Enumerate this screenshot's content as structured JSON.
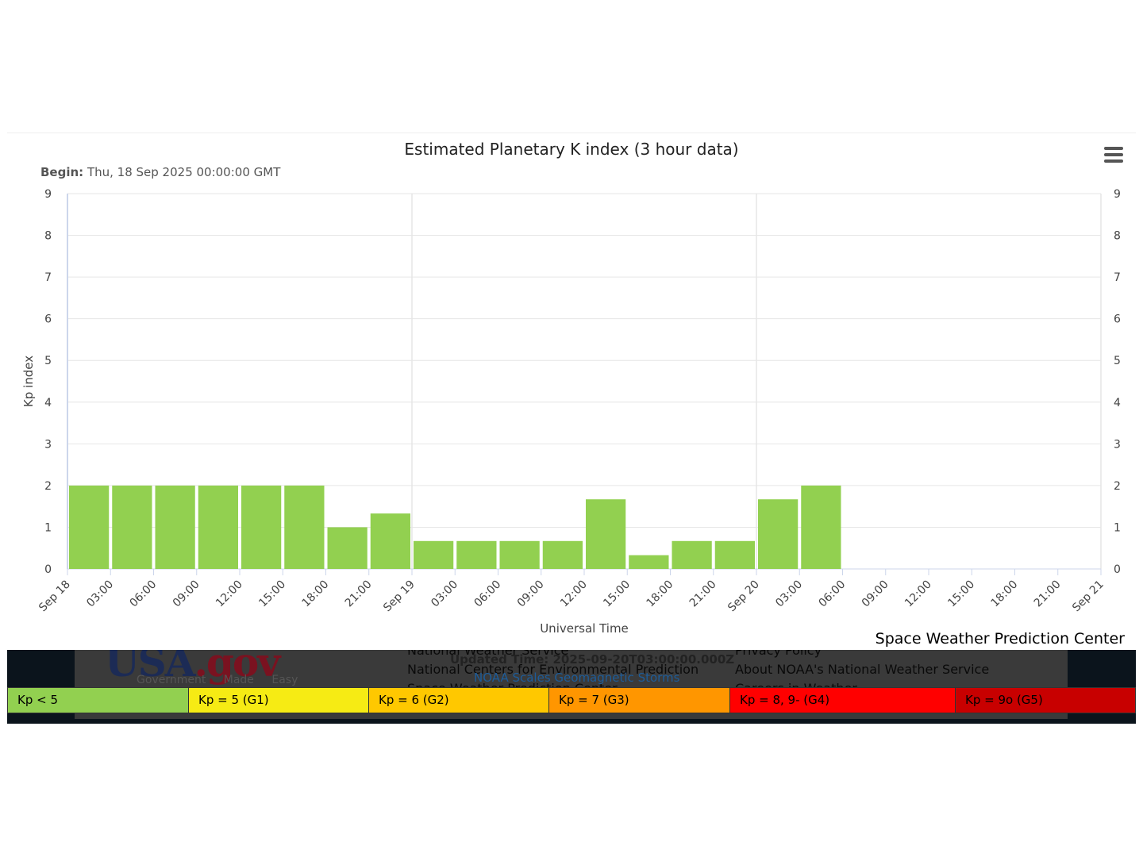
{
  "chart_data": {
    "type": "bar",
    "title": "Estimated Planetary K index (3 hour data)",
    "subtitle_label": "Begin:",
    "subtitle_value": "Thu, 18 Sep 2025 00:00:00 GMT",
    "xlabel": "Universal Time",
    "ylabel": "Kp index",
    "ylim": [
      0,
      9
    ],
    "yticks": [
      "0",
      "1",
      "2",
      "3",
      "4",
      "5",
      "6",
      "7",
      "8",
      "9"
    ],
    "xticks": [
      "Sep 18",
      "03:00",
      "06:00",
      "09:00",
      "12:00",
      "15:00",
      "18:00",
      "21:00",
      "Sep 19",
      "03:00",
      "06:00",
      "09:00",
      "12:00",
      "15:00",
      "18:00",
      "21:00",
      "Sep 20",
      "03:00",
      "06:00",
      "09:00",
      "12:00",
      "15:00",
      "18:00",
      "21:00",
      "Sep 21"
    ],
    "x": [
      "2025-09-18 00:00",
      "2025-09-18 03:00",
      "2025-09-18 06:00",
      "2025-09-18 09:00",
      "2025-09-18 12:00",
      "2025-09-18 15:00",
      "2025-09-18 18:00",
      "2025-09-18 21:00",
      "2025-09-19 00:00",
      "2025-09-19 03:00",
      "2025-09-19 06:00",
      "2025-09-19 09:00",
      "2025-09-19 12:00",
      "2025-09-19 15:00",
      "2025-09-19 18:00",
      "2025-09-19 21:00",
      "2025-09-20 00:00",
      "2025-09-20 03:00"
    ],
    "values": [
      2,
      2,
      2,
      2,
      2,
      2,
      1,
      1.33,
      0.67,
      0.67,
      0.67,
      0.67,
      1.67,
      0.33,
      0.67,
      0.67,
      1.67,
      2
    ],
    "bar_color": "#92d050",
    "grid": true
  },
  "credit": "Space Weather Prediction Center",
  "footer": {
    "logo_main": "USA",
    "logo_gov": ".gov",
    "logo_tagline": "Government Made Easy",
    "links_middle": [
      "National Weather Service",
      "National Centers for Environmental Prediction",
      "Space Weather Prediction Center"
    ],
    "links_right": [
      "Privacy Policy",
      "About NOAA's National Weather Service",
      "Careers in Weather"
    ],
    "updated": "Updated Time: 2025-09-20T03:00:00.000Z",
    "scales_link": "NOAA Scales Geomagnetic Storms"
  },
  "legend": [
    {
      "label": "Kp < 5",
      "color": "#92d050"
    },
    {
      "label": "Kp = 5 (G1)",
      "color": "#f6eb14"
    },
    {
      "label": "Kp = 6 (G2)",
      "color": "#ffc800"
    },
    {
      "label": "Kp = 7 (G3)",
      "color": "#ff9600"
    },
    {
      "label": "Kp = 8, 9- (G4)",
      "color": "#ff0000"
    },
    {
      "label": "Kp = 9o (G5)",
      "color": "#c80000"
    }
  ]
}
